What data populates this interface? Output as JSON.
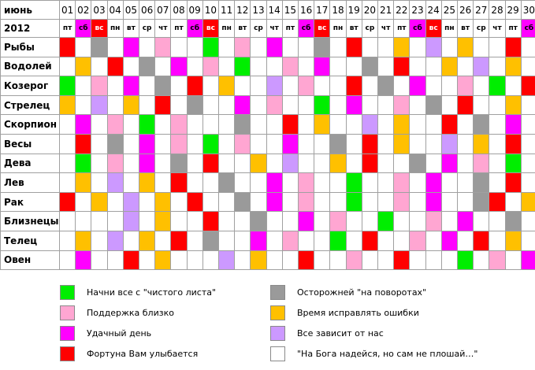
{
  "calendar": {
    "month_label": "июнь",
    "year_label": "2012",
    "days": [
      "01",
      "02",
      "03",
      "04",
      "05",
      "06",
      "07",
      "08",
      "09",
      "10",
      "11",
      "12",
      "13",
      "14",
      "15",
      "16",
      "17",
      "18",
      "19",
      "20",
      "21",
      "22",
      "23",
      "24",
      "25",
      "26",
      "27",
      "28",
      "29",
      "30"
    ],
    "weekdays": [
      "пт",
      "сб",
      "вс",
      "пн",
      "вт",
      "ср",
      "чт",
      "пт",
      "сб",
      "вс",
      "пн",
      "вт",
      "ср",
      "чт",
      "пт",
      "сб",
      "вс",
      "пн",
      "вт",
      "ср",
      "чт",
      "пт",
      "сб",
      "вс",
      "пн",
      "вт",
      "ср",
      "чт",
      "пт",
      "сб"
    ],
    "weekday_colors": [
      "white",
      "magenta",
      "red",
      "white",
      "white",
      "white",
      "white",
      "white",
      "magenta",
      "red",
      "white",
      "white",
      "white",
      "white",
      "white",
      "magenta",
      "red",
      "white",
      "white",
      "white",
      "white",
      "white",
      "magenta",
      "red",
      "white",
      "white",
      "white",
      "white",
      "white",
      "magenta"
    ],
    "rows": [
      {
        "sign": "Рыбы",
        "cells": [
          "red",
          "white",
          "gray",
          "white",
          "magenta",
          "white",
          "pink",
          "white",
          "white",
          "green",
          "white",
          "pink",
          "white",
          "magenta",
          "white",
          "white",
          "gray",
          "white",
          "red",
          "white",
          "white",
          "orange",
          "white",
          "lavender",
          "white",
          "orange",
          "white",
          "white",
          "red",
          "white"
        ]
      },
      {
        "sign": "Водолей",
        "cells": [
          "white",
          "orange",
          "white",
          "red",
          "white",
          "gray",
          "white",
          "magenta",
          "white",
          "pink",
          "white",
          "green",
          "white",
          "white",
          "pink",
          "white",
          "magenta",
          "white",
          "white",
          "gray",
          "white",
          "red",
          "white",
          "white",
          "orange",
          "white",
          "lavender",
          "white",
          "orange",
          "white"
        ]
      },
      {
        "sign": "Козерог",
        "cells": [
          "green",
          "white",
          "pink",
          "white",
          "magenta",
          "white",
          "gray",
          "white",
          "red",
          "white",
          "orange",
          "white",
          "white",
          "lavender",
          "white",
          "pink",
          "white",
          "white",
          "red",
          "white",
          "gray",
          "white",
          "magenta",
          "white",
          "white",
          "pink",
          "white",
          "green",
          "white",
          "red"
        ]
      },
      {
        "sign": "Стрелец",
        "cells": [
          "orange",
          "white",
          "lavender",
          "white",
          "orange",
          "white",
          "red",
          "white",
          "gray",
          "white",
          "white",
          "magenta",
          "white",
          "pink",
          "white",
          "white",
          "green",
          "white",
          "magenta",
          "white",
          "white",
          "pink",
          "white",
          "gray",
          "white",
          "red",
          "white",
          "white",
          "orange",
          "white"
        ]
      },
      {
        "sign": "Скорпион",
        "cells": [
          "white",
          "magenta",
          "white",
          "pink",
          "white",
          "green",
          "white",
          "pink",
          "white",
          "white",
          "white",
          "gray",
          "white",
          "white",
          "red",
          "white",
          "orange",
          "white",
          "white",
          "lavender",
          "white",
          "orange",
          "white",
          "white",
          "red",
          "white",
          "gray",
          "white",
          "magenta",
          "white"
        ]
      },
      {
        "sign": "Весы",
        "cells": [
          "white",
          "red",
          "white",
          "gray",
          "white",
          "magenta",
          "white",
          "pink",
          "white",
          "green",
          "white",
          "pink",
          "white",
          "white",
          "magenta",
          "white",
          "white",
          "gray",
          "white",
          "red",
          "white",
          "orange",
          "white",
          "white",
          "lavender",
          "white",
          "orange",
          "white",
          "red",
          "white"
        ]
      },
      {
        "sign": "Дева",
        "cells": [
          "white",
          "green",
          "white",
          "pink",
          "white",
          "magenta",
          "white",
          "gray",
          "white",
          "red",
          "white",
          "white",
          "orange",
          "white",
          "lavender",
          "white",
          "white",
          "orange",
          "white",
          "red",
          "white",
          "white",
          "gray",
          "white",
          "magenta",
          "white",
          "pink",
          "white",
          "green",
          "white"
        ]
      },
      {
        "sign": "Лев",
        "cells": [
          "white",
          "orange",
          "white",
          "lavender",
          "white",
          "orange",
          "white",
          "red",
          "white",
          "white",
          "gray",
          "white",
          "white",
          "magenta",
          "white",
          "pink",
          "white",
          "white",
          "green",
          "white",
          "white",
          "pink",
          "white",
          "magenta",
          "white",
          "white",
          "gray",
          "white",
          "red",
          "white"
        ]
      },
      {
        "sign": "Рак",
        "cells": [
          "red",
          "white",
          "orange",
          "white",
          "lavender",
          "white",
          "orange",
          "white",
          "red",
          "white",
          "white",
          "gray",
          "white",
          "magenta",
          "white",
          "pink",
          "white",
          "white",
          "green",
          "white",
          "white",
          "pink",
          "white",
          "magenta",
          "white",
          "white",
          "gray",
          "red",
          "white",
          "orange"
        ]
      },
      {
        "sign": "Близнецы",
        "cells": [
          "white",
          "white",
          "white",
          "white",
          "lavender",
          "white",
          "orange",
          "white",
          "white",
          "red",
          "white",
          "white",
          "gray",
          "white",
          "white",
          "magenta",
          "white",
          "pink",
          "white",
          "white",
          "green",
          "white",
          "white",
          "pink",
          "white",
          "magenta",
          "white",
          "white",
          "gray",
          "white"
        ]
      },
      {
        "sign": "Телец",
        "cells": [
          "white",
          "orange",
          "white",
          "lavender",
          "white",
          "orange",
          "white",
          "red",
          "white",
          "gray",
          "white",
          "white",
          "magenta",
          "white",
          "pink",
          "white",
          "white",
          "green",
          "white",
          "red",
          "white",
          "white",
          "pink",
          "white",
          "magenta",
          "white",
          "red",
          "white",
          "orange",
          "white"
        ]
      },
      {
        "sign": "Овен",
        "cells": [
          "white",
          "magenta",
          "white",
          "white",
          "red",
          "white",
          "orange",
          "white",
          "white",
          "white",
          "lavender",
          "white",
          "orange",
          "white",
          "white",
          "red",
          "white",
          "white",
          "pink",
          "white",
          "white",
          "red",
          "white",
          "white",
          "white",
          "green",
          "white",
          "pink",
          "white",
          "magenta"
        ]
      }
    ]
  },
  "palette": {
    "white": "#ffffff",
    "green": "#00ee00",
    "pink": "#ffa6d2",
    "magenta": "#ff00ff",
    "red": "#ff0000",
    "gray": "#9a9a9a",
    "orange": "#ffc000",
    "lavender": "#cc99ff",
    "weekday_white": "#ffffff",
    "weekday_magenta": "#ff00ff",
    "weekday_red": "#ff0000"
  },
  "legend": [
    {
      "color": "green",
      "text": "Начни все с \"чистого листа\""
    },
    {
      "color": "pink",
      "text": "Поддержка близко"
    },
    {
      "color": "magenta",
      "text": "Удачный день"
    },
    {
      "color": "red",
      "text": "Фортуна Вам улыбается"
    },
    {
      "color": "gray",
      "text": "Осторожней \"на поворотах\""
    },
    {
      "color": "orange",
      "text": "Время исправлять ошибки"
    },
    {
      "color": "lavender",
      "text": "Все зависит от нас"
    },
    {
      "color": "white",
      "text": "\"На Бога надейся, но сам не плошай…\""
    }
  ]
}
